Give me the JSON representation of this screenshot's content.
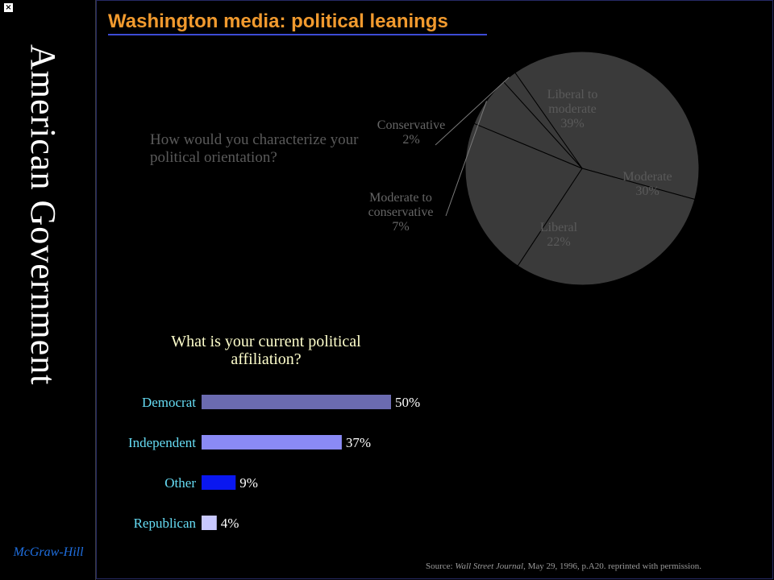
{
  "app": {
    "close_glyph": "×",
    "side_title": "American Government",
    "publisher": "McGraw-Hill",
    "slide_title": "Washington media: political leanings"
  },
  "source_note": {
    "prefix": "Source: ",
    "publication": "Wall Street Journal",
    "rest": ", May 29, 1996, p.A20. reprinted with permission."
  },
  "chart_data": [
    {
      "type": "pie",
      "title": "How would you characterize your political orientation?",
      "slices": [
        {
          "label_lines": [
            "Liberal to",
            "moderate",
            "39%"
          ],
          "label": "Liberal to moderate",
          "value": 39
        },
        {
          "label_lines": [
            "Moderate",
            "30%"
          ],
          "label": "Moderate",
          "value": 30
        },
        {
          "label_lines": [
            "Liberal",
            "22%"
          ],
          "label": "Liberal",
          "value": 22
        },
        {
          "label_lines": [
            "Moderate to",
            "conservative",
            "7%"
          ],
          "label": "Moderate to conservative",
          "value": 7
        },
        {
          "label_lines": [
            "Conservative",
            "2%"
          ],
          "label": "Conservative",
          "value": 2
        }
      ],
      "colors": {
        "slice": "#3a3a3a",
        "edge": "#000000",
        "label": "#5a5a5a",
        "label_outside": "#666666"
      }
    },
    {
      "type": "bar",
      "orientation": "horizontal",
      "title": "What is your current political affiliation?",
      "categories": [
        "Democrat",
        "Independent",
        "Other",
        "Republican"
      ],
      "values": [
        50,
        37,
        9,
        4
      ],
      "value_labels": [
        "50%",
        "37%",
        "9%",
        "4%"
      ],
      "xlim": [
        0,
        100
      ],
      "colors": [
        "#6b6bb0",
        "#8a8af5",
        "#0a17f0",
        "#c8c8ff"
      ],
      "category_label_color": "#66ddf5",
      "value_label_color": "#ffffff"
    }
  ]
}
